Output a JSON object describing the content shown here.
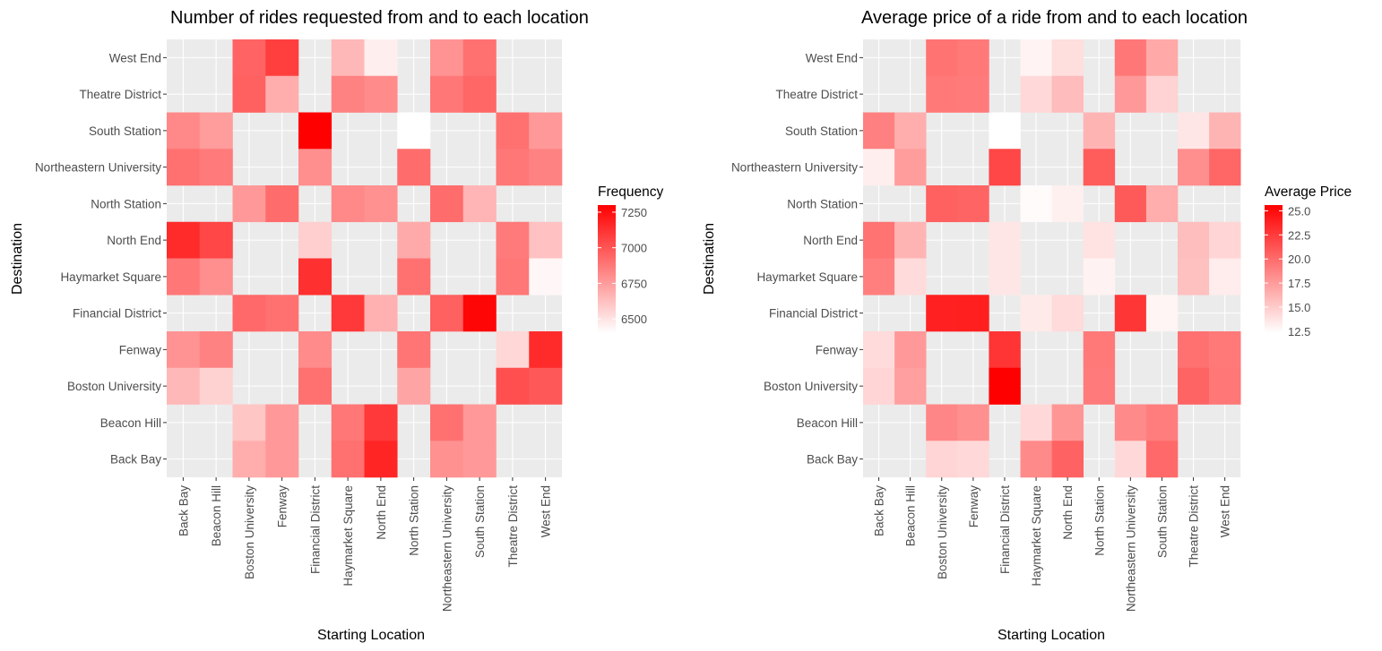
{
  "chart_data": [
    {
      "type": "heatmap",
      "title": "Number of rides requested from and to each location",
      "xlabel": "Starting Location",
      "ylabel": "Destination",
      "x_categories": [
        "Back Bay",
        "Beacon Hill",
        "Boston University",
        "Fenway",
        "Financial District",
        "Haymarket Square",
        "North End",
        "North Station",
        "Northeastern University",
        "South Station",
        "Theatre District",
        "West End"
      ],
      "y_categories": [
        "Back Bay",
        "Beacon Hill",
        "Boston University",
        "Fenway",
        "Financial District",
        "Haymarket Square",
        "North End",
        "North Station",
        "Northeastern University",
        "South Station",
        "Theatre District",
        "West End"
      ],
      "legend": {
        "title": "Frequency",
        "ticks": [
          "6500",
          "6750",
          "7000",
          "7250"
        ],
        "tick_values": [
          6500,
          6750,
          7000,
          7250
        ],
        "min": 6400,
        "max": 7300,
        "position": "right",
        "low_color": "#ffffff",
        "high_color": "#ff0000"
      },
      "grid": true,
      "panel_color": "#ebebeb",
      "cells": [
        {
          "x": "Back Bay",
          "y": "South Station",
          "value": 6820
        },
        {
          "x": "Back Bay",
          "y": "Northeastern University",
          "value": 6900
        },
        {
          "x": "Back Bay",
          "y": "North End",
          "value": 7150
        },
        {
          "x": "Back Bay",
          "y": "Haymarket Square",
          "value": 6880
        },
        {
          "x": "Back Bay",
          "y": "Fenway",
          "value": 6780
        },
        {
          "x": "Back Bay",
          "y": "Boston University",
          "value": 6650
        },
        {
          "x": "Beacon Hill",
          "y": "South Station",
          "value": 6750
        },
        {
          "x": "Beacon Hill",
          "y": "Northeastern University",
          "value": 6870
        },
        {
          "x": "Beacon Hill",
          "y": "North End",
          "value": 7050
        },
        {
          "x": "Beacon Hill",
          "y": "Haymarket Square",
          "value": 6800
        },
        {
          "x": "Beacon Hill",
          "y": "Fenway",
          "value": 6840
        },
        {
          "x": "Beacon Hill",
          "y": "Boston University",
          "value": 6560
        },
        {
          "x": "Boston University",
          "y": "West End",
          "value": 6950
        },
        {
          "x": "Boston University",
          "y": "Theatre District",
          "value": 6960
        },
        {
          "x": "Boston University",
          "y": "North Station",
          "value": 6760
        },
        {
          "x": "Boston University",
          "y": "Financial District",
          "value": 6930
        },
        {
          "x": "Boston University",
          "y": "Beacon Hill",
          "value": 6600
        },
        {
          "x": "Boston University",
          "y": "Back Bay",
          "value": 6690
        },
        {
          "x": "Fenway",
          "y": "West End",
          "value": 7080
        },
        {
          "x": "Fenway",
          "y": "Theatre District",
          "value": 6690
        },
        {
          "x": "Fenway",
          "y": "North Station",
          "value": 6920
        },
        {
          "x": "Fenway",
          "y": "Financial District",
          "value": 6900
        },
        {
          "x": "Fenway",
          "y": "Beacon Hill",
          "value": 6760
        },
        {
          "x": "Fenway",
          "y": "Back Bay",
          "value": 6760
        },
        {
          "x": "Financial District",
          "y": "South Station",
          "value": 7300
        },
        {
          "x": "Financial District",
          "y": "Northeastern University",
          "value": 6800
        },
        {
          "x": "Financial District",
          "y": "North End",
          "value": 6570
        },
        {
          "x": "Financial District",
          "y": "Haymarket Square",
          "value": 7130
        },
        {
          "x": "Financial District",
          "y": "Fenway",
          "value": 6810
        },
        {
          "x": "Financial District",
          "y": "Boston University",
          "value": 6900
        },
        {
          "x": "Haymarket Square",
          "y": "West End",
          "value": 6650
        },
        {
          "x": "Haymarket Square",
          "y": "Theatre District",
          "value": 6840
        },
        {
          "x": "Haymarket Square",
          "y": "North Station",
          "value": 6820
        },
        {
          "x": "Haymarket Square",
          "y": "Financial District",
          "value": 7100
        },
        {
          "x": "Haymarket Square",
          "y": "Beacon Hill",
          "value": 6880
        },
        {
          "x": "Haymarket Square",
          "y": "Back Bay",
          "value": 6900
        },
        {
          "x": "North End",
          "y": "West End",
          "value": 6460
        },
        {
          "x": "North End",
          "y": "Theatre District",
          "value": 6810
        },
        {
          "x": "North End",
          "y": "North Station",
          "value": 6790
        },
        {
          "x": "North End",
          "y": "Financial District",
          "value": 6680
        },
        {
          "x": "North End",
          "y": "Beacon Hill",
          "value": 7100
        },
        {
          "x": "North End",
          "y": "Back Bay",
          "value": 7170
        },
        {
          "x": "North Station",
          "y": "South Station",
          "value": 6400
        },
        {
          "x": "North Station",
          "y": "Northeastern University",
          "value": 6920
        },
        {
          "x": "North Station",
          "y": "North End",
          "value": 6700
        },
        {
          "x": "North Station",
          "y": "Haymarket Square",
          "value": 6900
        },
        {
          "x": "North Station",
          "y": "Fenway",
          "value": 6890
        },
        {
          "x": "North Station",
          "y": "Boston University",
          "value": 6720
        },
        {
          "x": "Northeastern University",
          "y": "West End",
          "value": 6780
        },
        {
          "x": "Northeastern University",
          "y": "Theatre District",
          "value": 6880
        },
        {
          "x": "Northeastern University",
          "y": "North Station",
          "value": 6920
        },
        {
          "x": "Northeastern University",
          "y": "Financial District",
          "value": 6960
        },
        {
          "x": "Northeastern University",
          "y": "Beacon Hill",
          "value": 6900
        },
        {
          "x": "Northeastern University",
          "y": "Back Bay",
          "value": 6790
        },
        {
          "x": "South Station",
          "y": "West End",
          "value": 6900
        },
        {
          "x": "South Station",
          "y": "Theatre District",
          "value": 6940
        },
        {
          "x": "South Station",
          "y": "North Station",
          "value": 6660
        },
        {
          "x": "South Station",
          "y": "Financial District",
          "value": 7280
        },
        {
          "x": "South Station",
          "y": "Beacon Hill",
          "value": 6760
        },
        {
          "x": "South Station",
          "y": "Back Bay",
          "value": 6760
        },
        {
          "x": "Theatre District",
          "y": "South Station",
          "value": 6900
        },
        {
          "x": "Theatre District",
          "y": "Northeastern University",
          "value": 6880
        },
        {
          "x": "Theatre District",
          "y": "North End",
          "value": 6870
        },
        {
          "x": "Theatre District",
          "y": "Haymarket Square",
          "value": 6880
        },
        {
          "x": "Theatre District",
          "y": "Fenway",
          "value": 6540
        },
        {
          "x": "Theatre District",
          "y": "Boston University",
          "value": 7020
        },
        {
          "x": "West End",
          "y": "South Station",
          "value": 6760
        },
        {
          "x": "West End",
          "y": "Northeastern University",
          "value": 6840
        },
        {
          "x": "West End",
          "y": "North End",
          "value": 6620
        },
        {
          "x": "West End",
          "y": "Haymarket Square",
          "value": 6430
        },
        {
          "x": "West End",
          "y": "Fenway",
          "value": 7150
        },
        {
          "x": "West End",
          "y": "Boston University",
          "value": 6990
        }
      ]
    },
    {
      "type": "heatmap",
      "title": "Average price of a ride from and to each location",
      "xlabel": "Starting Location",
      "ylabel": "Destination",
      "x_categories": [
        "Back Bay",
        "Beacon Hill",
        "Boston University",
        "Fenway",
        "Financial District",
        "Haymarket Square",
        "North End",
        "North Station",
        "Northeastern University",
        "South Station",
        "Theatre District",
        "West End"
      ],
      "y_categories": [
        "Back Bay",
        "Beacon Hill",
        "Boston University",
        "Fenway",
        "Financial District",
        "Haymarket Square",
        "North End",
        "North Station",
        "Northeastern University",
        "South Station",
        "Theatre District",
        "West End"
      ],
      "legend": {
        "title": "Average Price",
        "ticks": [
          "12.5",
          "15.0",
          "17.5",
          "20.0",
          "22.5",
          "25.0"
        ],
        "tick_values": [
          12.5,
          15.0,
          17.5,
          20.0,
          22.5,
          25.0
        ],
        "min": 12.3,
        "max": 25.6,
        "position": "right",
        "low_color": "#ffffff",
        "high_color": "#ff0000"
      },
      "grid": true,
      "panel_color": "#ebebeb",
      "cells": [
        {
          "x": "Back Bay",
          "y": "South Station",
          "value": 18.9
        },
        {
          "x": "Back Bay",
          "y": "Northeastern University",
          "value": 13.2
        },
        {
          "x": "Back Bay",
          "y": "North End",
          "value": 19.6
        },
        {
          "x": "Back Bay",
          "y": "Haymarket Square",
          "value": 19.0
        },
        {
          "x": "Back Bay",
          "y": "Fenway",
          "value": 14.2
        },
        {
          "x": "Back Bay",
          "y": "Boston University",
          "value": 14.5
        },
        {
          "x": "Beacon Hill",
          "y": "South Station",
          "value": 16.6
        },
        {
          "x": "Beacon Hill",
          "y": "Northeastern University",
          "value": 17.4
        },
        {
          "x": "Beacon Hill",
          "y": "North End",
          "value": 16.2
        },
        {
          "x": "Beacon Hill",
          "y": "Haymarket Square",
          "value": 14.2
        },
        {
          "x": "Beacon Hill",
          "y": "Fenway",
          "value": 17.6
        },
        {
          "x": "Beacon Hill",
          "y": "Boston University",
          "value": 17.3
        },
        {
          "x": "Boston University",
          "y": "West End",
          "value": 19.6
        },
        {
          "x": "Boston University",
          "y": "Theatre District",
          "value": 19.3
        },
        {
          "x": "Boston University",
          "y": "North Station",
          "value": 20.6
        },
        {
          "x": "Boston University",
          "y": "Financial District",
          "value": 23.9
        },
        {
          "x": "Boston University",
          "y": "Beacon Hill",
          "value": 18.6
        },
        {
          "x": "Boston University",
          "y": "Back Bay",
          "value": 14.5
        },
        {
          "x": "Fenway",
          "y": "West End",
          "value": 19.3
        },
        {
          "x": "Fenway",
          "y": "Theatre District",
          "value": 19.2
        },
        {
          "x": "Fenway",
          "y": "North Station",
          "value": 20.4
        },
        {
          "x": "Fenway",
          "y": "Financial District",
          "value": 24.0
        },
        {
          "x": "Fenway",
          "y": "Beacon Hill",
          "value": 18.1
        },
        {
          "x": "Fenway",
          "y": "Back Bay",
          "value": 14.3
        },
        {
          "x": "Financial District",
          "y": "South Station",
          "value": 12.3
        },
        {
          "x": "Financial District",
          "y": "Northeastern University",
          "value": 21.9
        },
        {
          "x": "Financial District",
          "y": "North End",
          "value": 13.6
        },
        {
          "x": "Financial District",
          "y": "Haymarket Square",
          "value": 13.6
        },
        {
          "x": "Financial District",
          "y": "Fenway",
          "value": 22.9
        },
        {
          "x": "Financial District",
          "y": "Boston University",
          "value": 25.6
        },
        {
          "x": "Haymarket Square",
          "y": "West End",
          "value": 12.9
        },
        {
          "x": "Haymarket Square",
          "y": "Theatre District",
          "value": 14.3
        },
        {
          "x": "Haymarket Square",
          "y": "North Station",
          "value": 12.5
        },
        {
          "x": "Haymarket Square",
          "y": "Financial District",
          "value": 13.4
        },
        {
          "x": "Haymarket Square",
          "y": "Beacon Hill",
          "value": 14.3
        },
        {
          "x": "Haymarket Square",
          "y": "Back Bay",
          "value": 18.4
        },
        {
          "x": "North End",
          "y": "West End",
          "value": 14.0
        },
        {
          "x": "North End",
          "y": "Theatre District",
          "value": 15.8
        },
        {
          "x": "North End",
          "y": "North Station",
          "value": 13.1
        },
        {
          "x": "North End",
          "y": "Financial District",
          "value": 14.2
        },
        {
          "x": "North End",
          "y": "Beacon Hill",
          "value": 17.8
        },
        {
          "x": "North End",
          "y": "Back Bay",
          "value": 20.5
        },
        {
          "x": "North Station",
          "y": "South Station",
          "value": 16.2
        },
        {
          "x": "North Station",
          "y": "Northeastern University",
          "value": 20.8
        },
        {
          "x": "North Station",
          "y": "North End",
          "value": 13.8
        },
        {
          "x": "North Station",
          "y": "Haymarket Square",
          "value": 13.0
        },
        {
          "x": "North Station",
          "y": "Fenway",
          "value": 19.3
        },
        {
          "x": "North Station",
          "y": "Boston University",
          "value": 19.2
        },
        {
          "x": "Northeastern University",
          "y": "West End",
          "value": 19.4
        },
        {
          "x": "Northeastern University",
          "y": "Theatre District",
          "value": 17.6
        },
        {
          "x": "Northeastern University",
          "y": "North Station",
          "value": 20.9
        },
        {
          "x": "Northeastern University",
          "y": "Financial District",
          "value": 22.8
        },
        {
          "x": "Northeastern University",
          "y": "Beacon Hill",
          "value": 18.4
        },
        {
          "x": "Northeastern University",
          "y": "Back Bay",
          "value": 14.3
        },
        {
          "x": "South Station",
          "y": "West End",
          "value": 16.8
        },
        {
          "x": "South Station",
          "y": "Theatre District",
          "value": 14.6
        },
        {
          "x": "South Station",
          "y": "North Station",
          "value": 16.6
        },
        {
          "x": "South Station",
          "y": "Financial District",
          "value": 12.8
        },
        {
          "x": "South Station",
          "y": "Beacon Hill",
          "value": 19.1
        },
        {
          "x": "South Station",
          "y": "Back Bay",
          "value": 20.1
        },
        {
          "x": "Theatre District",
          "y": "South Station",
          "value": 13.6
        },
        {
          "x": "Theatre District",
          "y": "Northeastern University",
          "value": 18.2
        },
        {
          "x": "Theatre District",
          "y": "North End",
          "value": 15.7
        },
        {
          "x": "Theatre District",
          "y": "Haymarket Square",
          "value": 15.6
        },
        {
          "x": "Theatre District",
          "y": "Fenway",
          "value": 19.7
        },
        {
          "x": "Theatre District",
          "y": "Boston University",
          "value": 20.4
        },
        {
          "x": "West End",
          "y": "South Station",
          "value": 16.2
        },
        {
          "x": "West End",
          "y": "Northeastern University",
          "value": 20.3
        },
        {
          "x": "West End",
          "y": "North End",
          "value": 14.5
        },
        {
          "x": "West End",
          "y": "Haymarket Square",
          "value": 13.3
        },
        {
          "x": "West End",
          "y": "Fenway",
          "value": 19.3
        },
        {
          "x": "West End",
          "y": "Boston University",
          "value": 19.4
        }
      ]
    }
  ]
}
